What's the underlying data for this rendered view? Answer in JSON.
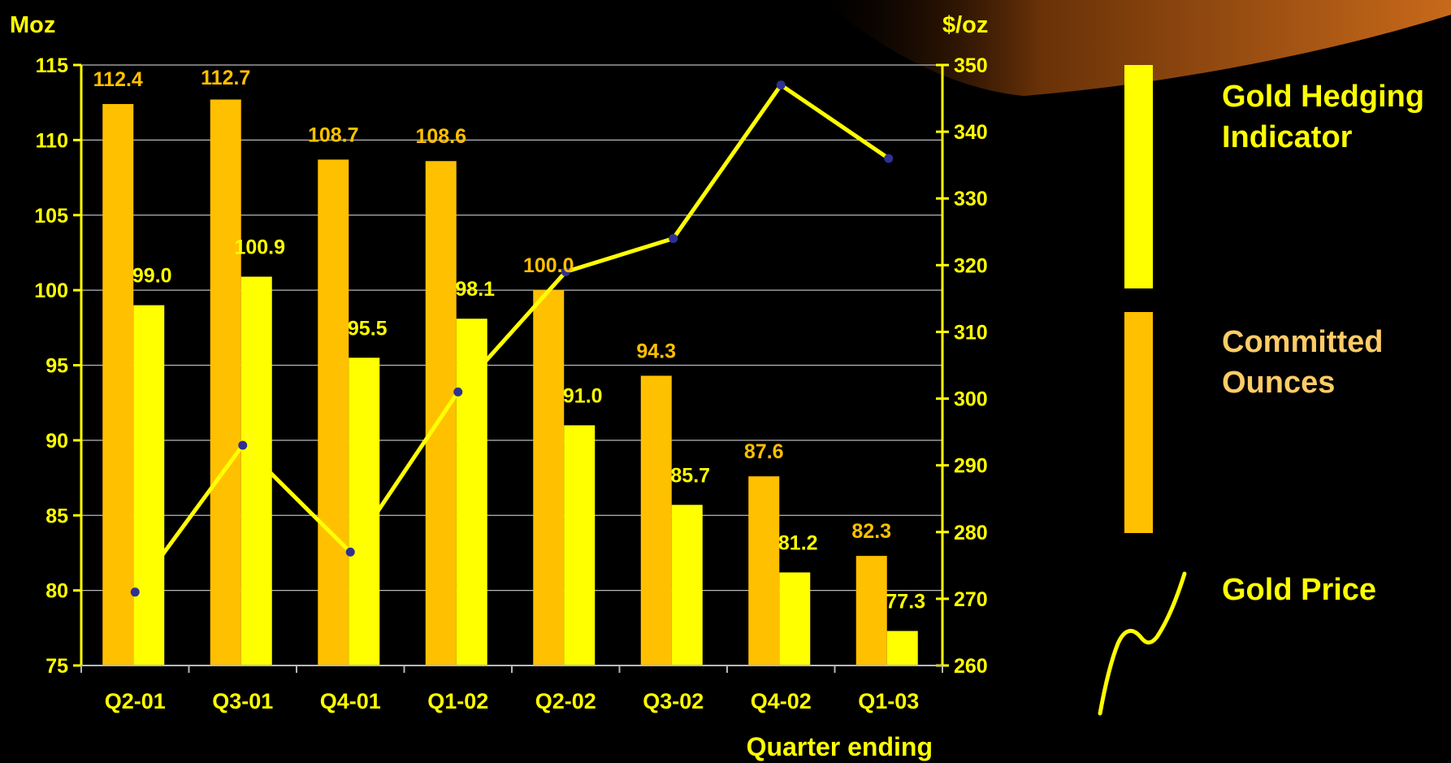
{
  "chart_data": {
    "type": "bar",
    "categories": [
      "Q2-01",
      "Q3-01",
      "Q4-01",
      "Q1-02",
      "Q2-02",
      "Q3-02",
      "Q4-02",
      "Q1-03"
    ],
    "series": [
      {
        "name": "Committed Ounces",
        "axis": "left",
        "type": "bar",
        "color": "#FFC000",
        "values": [
          112.4,
          112.7,
          108.7,
          108.6,
          100.0,
          94.3,
          87.6,
          82.3
        ],
        "labels": [
          "112.4",
          "112.7",
          "108.7",
          "108.6",
          "100.0",
          "94.3",
          "87.6",
          "82.3"
        ]
      },
      {
        "name": "Gold Hedging Indicator",
        "axis": "left",
        "type": "bar",
        "color": "#FFFF00",
        "values": [
          99.0,
          100.9,
          95.5,
          98.1,
          91.0,
          85.7,
          81.2,
          77.3
        ],
        "labels": [
          "99.0",
          "100.9",
          "95.5",
          "98.1",
          "91.0",
          "85.7",
          "81.2",
          "77.3"
        ]
      },
      {
        "name": "Gold Price",
        "axis": "right",
        "type": "line",
        "color": "#FFFF00",
        "values": [
          271,
          293,
          277,
          301,
          319,
          324,
          347,
          336
        ]
      }
    ],
    "left_axis": {
      "label": "Moz",
      "range": [
        75,
        115
      ],
      "ticks": [
        "75",
        "80",
        "85",
        "90",
        "95",
        "100",
        "105",
        "110",
        "115"
      ]
    },
    "right_axis": {
      "label": "$/oz",
      "range": [
        260,
        350
      ],
      "ticks": [
        "260",
        "270",
        "280",
        "290",
        "300",
        "310",
        "320",
        "330",
        "340",
        "350"
      ]
    },
    "xlabel": "Quarter ending",
    "grid": true,
    "legend_position": "right",
    "colors": {
      "background": "#000000",
      "committed": "#FFC000",
      "hedging": "#FFFF00",
      "price": "#FFFF00",
      "marker": "#2E3192",
      "committed_legend_text": "#FFCC66",
      "axis_text": "#FFFF00",
      "decor": "#B85A10"
    }
  },
  "legend": {
    "hedging": "Gold Hedging Indicator",
    "committed": "Committed Ounces",
    "price": "Gold Price"
  }
}
